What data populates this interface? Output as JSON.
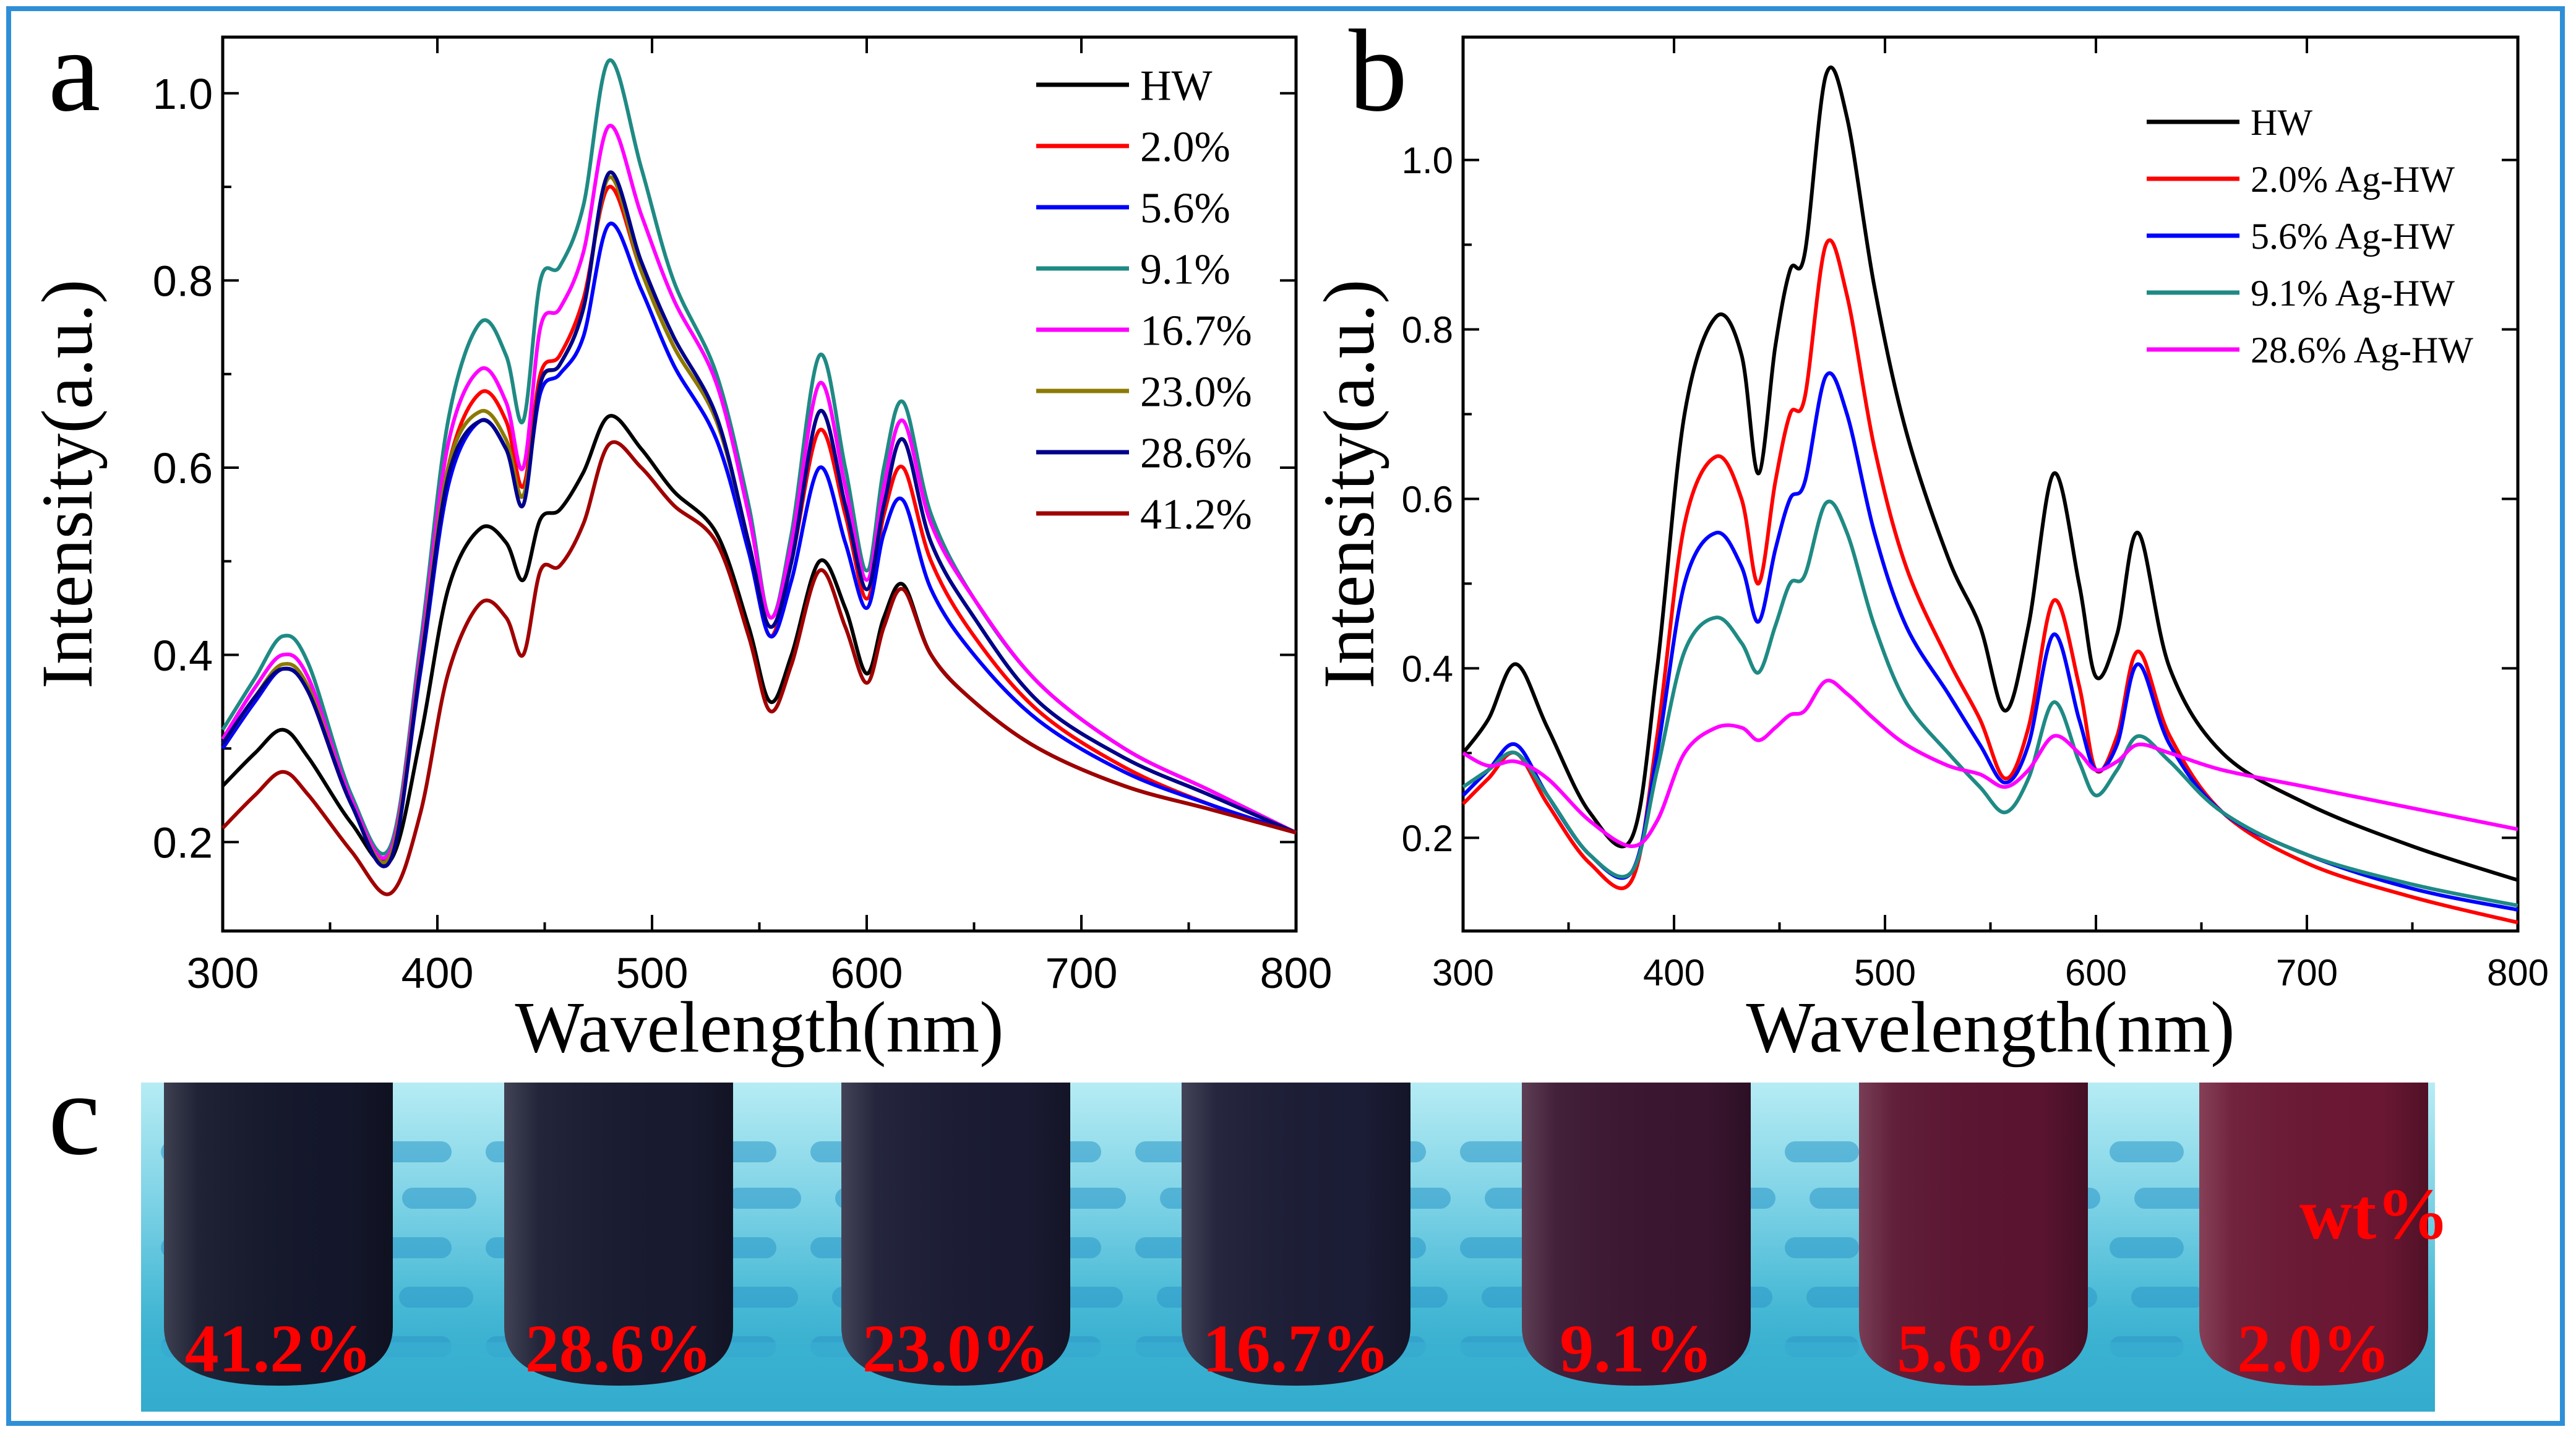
{
  "panels": {
    "a": "a",
    "b": "b",
    "c": "c"
  },
  "chart_data": [
    {
      "type": "line",
      "panel": "a",
      "xlabel": "Wavelength(nm)",
      "ylabel": "Intensity(a.u.)",
      "xlim": [
        300,
        800
      ],
      "ylim": [
        0.105,
        1.06
      ],
      "xticks": [
        300,
        400,
        500,
        600,
        700,
        800
      ],
      "yticks": [
        0.2,
        0.4,
        0.6,
        0.8,
        1.0
      ],
      "xtick_labels": [
        "300",
        "400",
        "500",
        "600",
        "700",
        "800"
      ],
      "ytick_labels": [
        "0.2",
        "0.4",
        "0.6",
        "0.8",
        "1.0"
      ],
      "legend_position": "top-right",
      "x": [
        300,
        315,
        328,
        340,
        360,
        378,
        392,
        405,
        420,
        432,
        440,
        448,
        457,
        468,
        480,
        495,
        510,
        530,
        545,
        555,
        565,
        578,
        590,
        600,
        608,
        617,
        630,
        650,
        680,
        720,
        760,
        800
      ],
      "series": [
        {
          "name": "HW",
          "color": "#000000",
          "values": [
            0.26,
            0.295,
            0.32,
            0.29,
            0.22,
            0.18,
            0.31,
            0.47,
            0.535,
            0.52,
            0.48,
            0.545,
            0.555,
            0.595,
            0.655,
            0.62,
            0.575,
            0.53,
            0.43,
            0.35,
            0.4,
            0.5,
            0.45,
            0.38,
            0.44,
            0.475,
            0.4,
            0.35,
            0.3,
            0.26,
            0.235,
            0.21
          ]
        },
        {
          "name": "2.0%",
          "color": "#ff0000",
          "values": [
            0.3,
            0.35,
            0.385,
            0.36,
            0.24,
            0.19,
            0.39,
            0.6,
            0.68,
            0.65,
            0.58,
            0.7,
            0.72,
            0.78,
            0.9,
            0.81,
            0.73,
            0.65,
            0.52,
            0.42,
            0.5,
            0.64,
            0.55,
            0.46,
            0.55,
            0.6,
            0.5,
            0.42,
            0.34,
            0.28,
            0.24,
            0.21
          ]
        },
        {
          "name": "5.6%",
          "color": "#0000ff",
          "values": [
            0.3,
            0.35,
            0.385,
            0.36,
            0.24,
            0.185,
            0.38,
            0.58,
            0.65,
            0.62,
            0.57,
            0.68,
            0.7,
            0.74,
            0.86,
            0.79,
            0.71,
            0.63,
            0.51,
            0.42,
            0.48,
            0.6,
            0.52,
            0.45,
            0.53,
            0.565,
            0.47,
            0.4,
            0.33,
            0.275,
            0.24,
            0.21
          ]
        },
        {
          "name": "9.1%",
          "color": "#1f8a84",
          "values": [
            0.32,
            0.375,
            0.42,
            0.39,
            0.25,
            0.195,
            0.41,
            0.65,
            0.755,
            0.72,
            0.65,
            0.8,
            0.815,
            0.88,
            1.035,
            0.92,
            0.8,
            0.7,
            0.56,
            0.44,
            0.53,
            0.72,
            0.6,
            0.49,
            0.6,
            0.67,
            0.55,
            0.46,
            0.37,
            0.3,
            0.255,
            0.21
          ]
        },
        {
          "name": "16.7%",
          "color": "#ff00ff",
          "values": [
            0.31,
            0.365,
            0.4,
            0.375,
            0.245,
            0.19,
            0.4,
            0.625,
            0.705,
            0.67,
            0.6,
            0.75,
            0.77,
            0.83,
            0.965,
            0.87,
            0.78,
            0.69,
            0.55,
            0.44,
            0.52,
            0.69,
            0.58,
            0.48,
            0.58,
            0.65,
            0.54,
            0.46,
            0.37,
            0.3,
            0.255,
            0.21
          ]
        },
        {
          "name": "23.0%",
          "color": "#8c7a00",
          "values": [
            0.305,
            0.355,
            0.39,
            0.365,
            0.24,
            0.185,
            0.39,
            0.6,
            0.66,
            0.63,
            0.57,
            0.69,
            0.71,
            0.77,
            0.91,
            0.81,
            0.73,
            0.65,
            0.52,
            0.43,
            0.5,
            0.66,
            0.56,
            0.47,
            0.56,
            0.63,
            0.52,
            0.44,
            0.35,
            0.29,
            0.25,
            0.21
          ]
        },
        {
          "name": "28.6%",
          "color": "#00008b",
          "values": [
            0.305,
            0.355,
            0.385,
            0.36,
            0.24,
            0.18,
            0.385,
            0.59,
            0.65,
            0.62,
            0.56,
            0.69,
            0.71,
            0.77,
            0.915,
            0.82,
            0.74,
            0.655,
            0.52,
            0.43,
            0.5,
            0.66,
            0.56,
            0.47,
            0.56,
            0.63,
            0.52,
            0.44,
            0.35,
            0.29,
            0.25,
            0.21
          ]
        },
        {
          "name": "41.2%",
          "color": "#a00000",
          "values": [
            0.215,
            0.25,
            0.275,
            0.25,
            0.19,
            0.145,
            0.23,
            0.38,
            0.455,
            0.44,
            0.4,
            0.49,
            0.495,
            0.54,
            0.625,
            0.6,
            0.56,
            0.52,
            0.42,
            0.34,
            0.39,
            0.49,
            0.43,
            0.37,
            0.43,
            0.47,
            0.4,
            0.35,
            0.3,
            0.26,
            0.235,
            0.21
          ]
        }
      ]
    },
    {
      "type": "line",
      "panel": "b",
      "xlabel": "Wavelength(nm)",
      "ylabel": "Intensity(a.u.)",
      "xlim": [
        300,
        800
      ],
      "ylim": [
        0.09,
        1.145
      ],
      "xticks": [
        300,
        400,
        500,
        600,
        700,
        800
      ],
      "yticks": [
        0.2,
        0.4,
        0.6,
        0.8,
        1.0
      ],
      "xtick_labels": [
        "300",
        "400",
        "500",
        "600",
        "700",
        "800"
      ],
      "ytick_labels": [
        "0.2",
        "0.4",
        "0.6",
        "0.8",
        "1.0"
      ],
      "legend_position": "top-right",
      "x": [
        300,
        312,
        325,
        340,
        360,
        380,
        392,
        405,
        420,
        432,
        440,
        448,
        455,
        462,
        472,
        482,
        495,
        510,
        530,
        545,
        557,
        568,
        580,
        592,
        600,
        610,
        620,
        635,
        660,
        700,
        750,
        800
      ],
      "series": [
        {
          "name": "HW",
          "color": "#000000",
          "values": [
            0.3,
            0.34,
            0.405,
            0.33,
            0.23,
            0.2,
            0.4,
            0.7,
            0.815,
            0.77,
            0.63,
            0.78,
            0.87,
            0.89,
            1.1,
            1.05,
            0.85,
            0.68,
            0.53,
            0.45,
            0.35,
            0.45,
            0.63,
            0.5,
            0.39,
            0.44,
            0.56,
            0.4,
            0.3,
            0.24,
            0.19,
            0.15
          ]
        },
        {
          "name": "2.0% Ag-HW",
          "color": "#ff0000",
          "values": [
            0.24,
            0.27,
            0.3,
            0.24,
            0.17,
            0.15,
            0.32,
            0.57,
            0.65,
            0.6,
            0.5,
            0.62,
            0.7,
            0.72,
            0.9,
            0.84,
            0.66,
            0.52,
            0.41,
            0.34,
            0.27,
            0.33,
            0.48,
            0.38,
            0.28,
            0.32,
            0.42,
            0.32,
            0.23,
            0.17,
            0.13,
            0.1
          ]
        },
        {
          "name": "5.6% Ag-HW",
          "color": "#0000ff",
          "values": [
            0.25,
            0.28,
            0.31,
            0.25,
            0.18,
            0.16,
            0.3,
            0.5,
            0.56,
            0.52,
            0.455,
            0.54,
            0.6,
            0.62,
            0.745,
            0.7,
            0.56,
            0.45,
            0.37,
            0.31,
            0.265,
            0.31,
            0.44,
            0.34,
            0.28,
            0.31,
            0.405,
            0.31,
            0.23,
            0.18,
            0.14,
            0.115
          ]
        },
        {
          "name": "9.1% Ag-HW",
          "color": "#1f8a84",
          "values": [
            0.26,
            0.28,
            0.3,
            0.25,
            0.18,
            0.16,
            0.28,
            0.42,
            0.46,
            0.43,
            0.395,
            0.45,
            0.5,
            0.51,
            0.595,
            0.56,
            0.45,
            0.36,
            0.3,
            0.26,
            0.23,
            0.27,
            0.36,
            0.29,
            0.25,
            0.28,
            0.32,
            0.29,
            0.23,
            0.18,
            0.145,
            0.12
          ]
        },
        {
          "name": "28.6% Ag-HW",
          "color": "#ff00ff",
          "values": [
            0.3,
            0.285,
            0.29,
            0.27,
            0.22,
            0.19,
            0.22,
            0.3,
            0.33,
            0.33,
            0.315,
            0.33,
            0.345,
            0.35,
            0.385,
            0.37,
            0.34,
            0.31,
            0.285,
            0.275,
            0.26,
            0.28,
            0.32,
            0.3,
            0.28,
            0.29,
            0.31,
            0.3,
            0.28,
            0.26,
            0.235,
            0.21
          ]
        }
      ]
    }
  ],
  "photo": {
    "corner_label": "wt%",
    "tubes": [
      {
        "label": "41.2%",
        "color": "#14172b"
      },
      {
        "label": "28.6%",
        "color": "#181a30"
      },
      {
        "label": "23.0%",
        "color": "#1a1b33"
      },
      {
        "label": "16.7%",
        "color": "#1b1c35"
      },
      {
        "label": "9.1%",
        "color": "#3a1530"
      },
      {
        "label": "5.6%",
        "color": "#5a1430"
      },
      {
        "label": "2.0%",
        "color": "#6a1733"
      }
    ]
  }
}
